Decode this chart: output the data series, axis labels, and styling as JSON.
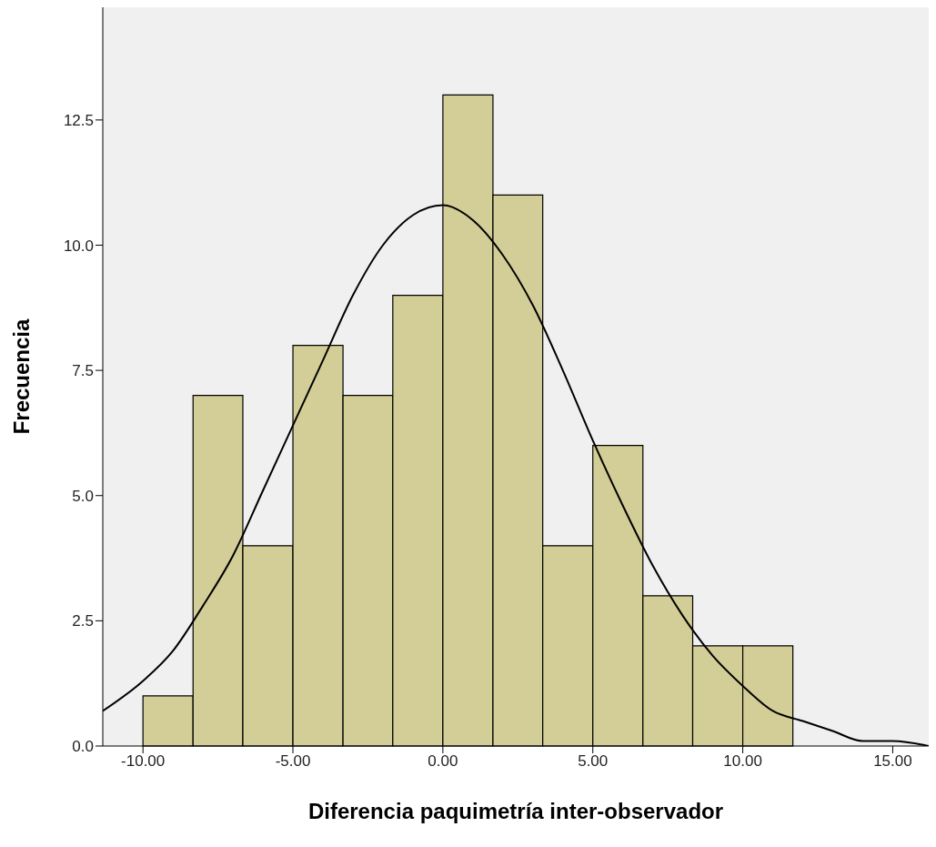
{
  "chart_data": {
    "type": "histogram",
    "xlabel": "Diferencia paquimetría inter-observador",
    "ylabel": "Frecuencia",
    "bins": [
      -10,
      -8.33,
      -6.67,
      -5,
      -3.33,
      -1.67,
      0,
      1.67,
      3.33,
      5,
      6.67,
      8.33,
      10,
      11.67
    ],
    "values": [
      1,
      7,
      4,
      8,
      7,
      9,
      13,
      11,
      4,
      6,
      3,
      2,
      2
    ],
    "color": "#d3ce97",
    "series": [
      {
        "type": "line",
        "color": "#000000",
        "x": [
          -11.34,
          -10,
          -9,
          -8,
          -7,
          -6,
          -5,
          -4,
          -3,
          -2,
          -1,
          0,
          1,
          2,
          3,
          4,
          5,
          6,
          7,
          8,
          9,
          10,
          11,
          12,
          13,
          14,
          15,
          16.2
        ],
        "values": [
          0.7,
          1.3,
          1.9,
          2.8,
          3.8,
          5.1,
          6.4,
          7.7,
          9.0,
          10.0,
          10.6,
          10.8,
          10.5,
          9.8,
          8.8,
          7.5,
          6.1,
          4.8,
          3.6,
          2.6,
          1.8,
          1.2,
          0.7,
          0.5,
          0.3,
          0.1,
          0.1,
          0.0
        ]
      }
    ],
    "marker": "none",
    "line_style": "solid",
    "xlim": [
      -11.34,
      16.2
    ],
    "xticks": [
      {
        "value": -10,
        "label": "-10.00"
      },
      {
        "value": -5,
        "label": "-5.00"
      },
      {
        "value": 0,
        "label": "0.00"
      },
      {
        "value": 5,
        "label": "5.00"
      },
      {
        "value": 10,
        "label": "10.00"
      },
      {
        "value": 15,
        "label": "15.00"
      }
    ],
    "ylim": [
      0,
      14.75
    ],
    "yticks": [
      {
        "value": 0,
        "label": "0.0"
      },
      {
        "value": 2.5,
        "label": "2.5"
      },
      {
        "value": 5,
        "label": "5.0"
      },
      {
        "value": 7.5,
        "label": "7.5"
      },
      {
        "value": 10,
        "label": "10.0"
      },
      {
        "value": 12.5,
        "label": "12.5"
      }
    ]
  }
}
